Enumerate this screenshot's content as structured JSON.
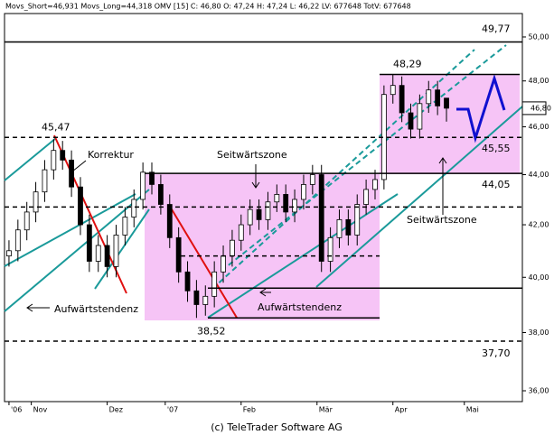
{
  "chart_data": {
    "type": "candlestick",
    "header": "Movs_Short=46,931 Movs_Long=44,318 OMV [15] C: 46,80 O: 47,24 H: 47,24 L: 46,22 LV: 677648 TotV: 677648",
    "footer": "(c) TeleTrader Software AG",
    "log_scale": true,
    "ylim": [
      35.64,
      51.1
    ],
    "yticks": [
      {
        "value": 36,
        "label": "36,00"
      },
      {
        "value": 38,
        "label": "38,00"
      },
      {
        "value": 40,
        "label": "40,00"
      },
      {
        "value": 42,
        "label": "42,00"
      },
      {
        "value": 44,
        "label": "44,00"
      },
      {
        "value": 46,
        "label": "46,00"
      },
      {
        "value": 48,
        "label": "48,00"
      },
      {
        "value": 50,
        "label": "50,00"
      }
    ],
    "xlim": [
      -0.5,
      57.5
    ],
    "xticks": [
      {
        "value": 0,
        "label": "'06"
      },
      {
        "value": 2.5,
        "label": "Nov"
      },
      {
        "value": 11,
        "label": "Dez"
      },
      {
        "value": 17.5,
        "label": "'07"
      },
      {
        "value": 26,
        "label": "Feb"
      },
      {
        "value": 34.5,
        "label": "Mär"
      },
      {
        "value": 43,
        "label": "Apr"
      },
      {
        "value": 51,
        "label": "Mai"
      }
    ],
    "open": [
      40.8,
      41.0,
      41.8,
      42.5,
      43.3,
      44.2,
      45.0,
      44.6,
      43.5,
      42.0,
      40.6,
      41.2,
      40.4,
      41.6,
      42.3,
      43.0,
      44.1,
      43.6,
      42.8,
      41.5,
      40.2,
      39.5,
      39.0,
      39.3,
      40.2,
      40.8,
      41.4,
      42.0,
      42.6,
      42.2,
      42.9,
      43.2,
      42.5,
      43.0,
      43.6,
      44.0,
      40.6,
      41.5,
      42.2,
      41.6,
      42.8,
      43.4,
      43.8,
      47.4,
      47.8,
      46.6,
      45.9,
      47.0,
      47.6,
      47.24
    ],
    "high": [
      41.4,
      42.2,
      42.9,
      43.7,
      44.6,
      45.47,
      45.4,
      45.0,
      43.9,
      42.4,
      41.6,
      41.6,
      42.0,
      42.7,
      43.4,
      44.5,
      44.5,
      44.0,
      43.2,
      41.9,
      40.6,
      39.9,
      39.7,
      40.6,
      41.2,
      41.8,
      42.4,
      43.0,
      43.0,
      43.3,
      43.6,
      43.6,
      43.4,
      44.0,
      44.4,
      44.4,
      41.9,
      42.6,
      42.6,
      43.2,
      43.8,
      44.2,
      47.8,
      48.29,
      48.2,
      47.0,
      47.4,
      48.0,
      48.0,
      47.24
    ],
    "low": [
      40.4,
      40.6,
      41.4,
      42.1,
      42.9,
      43.8,
      44.2,
      43.1,
      41.6,
      40.2,
      40.2,
      40.0,
      40.0,
      41.2,
      41.9,
      42.6,
      43.2,
      42.4,
      41.1,
      39.8,
      39.1,
      38.52,
      38.6,
      38.9,
      39.8,
      40.4,
      41.0,
      41.6,
      41.8,
      41.8,
      42.5,
      42.1,
      42.1,
      42.6,
      43.2,
      40.2,
      40.2,
      41.1,
      41.2,
      41.2,
      42.4,
      43.0,
      43.4,
      47.0,
      46.2,
      45.5,
      45.5,
      46.6,
      46.5,
      46.22
    ],
    "close": [
      41.0,
      41.8,
      42.5,
      43.3,
      44.2,
      45.0,
      44.6,
      43.5,
      42.0,
      40.6,
      41.2,
      40.4,
      41.6,
      42.3,
      43.0,
      44.1,
      43.6,
      42.8,
      41.5,
      40.2,
      39.5,
      39.0,
      39.3,
      40.2,
      40.8,
      41.4,
      42.0,
      42.6,
      42.2,
      42.9,
      43.2,
      42.5,
      43.0,
      43.6,
      44.0,
      40.6,
      41.5,
      42.2,
      41.6,
      42.8,
      43.4,
      43.8,
      47.4,
      47.8,
      46.6,
      45.9,
      47.0,
      47.6,
      46.9,
      46.8
    ],
    "levels": [
      {
        "value": 49.77,
        "label": "49,77"
      },
      {
        "value": 48.29,
        "label": "48,29"
      },
      {
        "value": 46.8,
        "label": "46,80"
      },
      {
        "value": 45.55,
        "label": "45,55"
      },
      {
        "value": 45.47,
        "label": "45,47"
      },
      {
        "value": 44.05,
        "label": "44,05"
      },
      {
        "value": 38.52,
        "label": "38,52"
      },
      {
        "value": 37.7,
        "label": "37,70"
      }
    ],
    "support_lines": [
      42.7,
      40.8,
      39.6
    ],
    "annotations": [
      "Korrektur",
      "Seitwärtszone",
      "Seitwärtszone",
      "Aufwärtstendenz",
      "Aufwärtstendenz"
    ]
  }
}
